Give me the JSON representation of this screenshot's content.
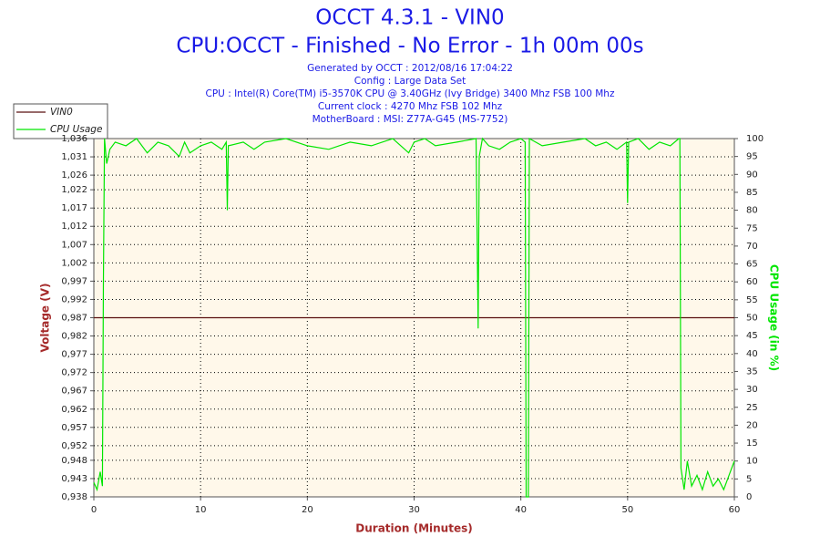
{
  "chart_data": {
    "type": "line",
    "title": "OCCT 4.3.1 - VIN0",
    "subtitle": "CPU:OCCT - Finished - No Error - 1h 00m 00s",
    "info": [
      "Generated by OCCT : 2012/08/16 17:04:22",
      "Config : Large Data Set",
      "CPU : Intel(R) Core(TM) i5-3570K CPU @ 3.40GHz (Ivy Bridge) 3400 Mhz FSB 100 Mhz",
      "Current clock : 4270 Mhz FSB 102 Mhz",
      "MotherBoard : MSI: Z77A-G45 (MS-7752)"
    ],
    "x_label": "Duration (Minutes)",
    "y_label": "Voltage (V)",
    "y2_label": "CPU Usage (in %)",
    "xlim": [
      0,
      60
    ],
    "xticks": [
      0,
      10,
      20,
      30,
      40,
      50,
      60
    ],
    "ylim": [
      0.938,
      1.036
    ],
    "yticks": [
      {
        "value": 0.938,
        "label": "0,938"
      },
      {
        "value": 0.943,
        "label": "0,943"
      },
      {
        "value": 0.948,
        "label": "0,948"
      },
      {
        "value": 0.952,
        "label": "0,952"
      },
      {
        "value": 0.957,
        "label": "0,957"
      },
      {
        "value": 0.962,
        "label": "0,962"
      },
      {
        "value": 0.967,
        "label": "0,967"
      },
      {
        "value": 0.972,
        "label": "0,972"
      },
      {
        "value": 0.977,
        "label": "0,977"
      },
      {
        "value": 0.982,
        "label": "0,982"
      },
      {
        "value": 0.987,
        "label": "0,987"
      },
      {
        "value": 0.992,
        "label": "0,992"
      },
      {
        "value": 0.997,
        "label": "0,997"
      },
      {
        "value": 1.002,
        "label": "1,002"
      },
      {
        "value": 1.007,
        "label": "1,007"
      },
      {
        "value": 1.012,
        "label": "1,012"
      },
      {
        "value": 1.017,
        "label": "1,017"
      },
      {
        "value": 1.022,
        "label": "1,022"
      },
      {
        "value": 1.026,
        "label": "1,026"
      },
      {
        "value": 1.031,
        "label": "1,031"
      },
      {
        "value": 1.036,
        "label": "1,036"
      }
    ],
    "y2lim": [
      0,
      100
    ],
    "y2ticks": [
      0,
      5,
      10,
      15,
      20,
      25,
      30,
      35,
      40,
      45,
      50,
      55,
      60,
      65,
      70,
      75,
      80,
      85,
      90,
      95,
      100
    ],
    "grid": true,
    "legend": "top-left",
    "series": [
      {
        "name": "VIN0",
        "color": "#5a1010",
        "x": [
          0,
          60
        ],
        "values": [
          0.987,
          0.987
        ]
      },
      {
        "name": "CPU Usage",
        "color": "#00e600",
        "axis": "y2",
        "x": [
          0,
          0.3,
          0.6,
          0.8,
          0.9,
          1.0,
          1.2,
          1.5,
          2,
          3,
          4,
          5,
          6,
          7,
          8,
          8.5,
          9,
          10,
          11,
          12,
          12.4,
          12.5,
          12.6,
          14,
          15,
          16,
          18,
          20,
          22,
          24,
          26,
          28,
          29.5,
          30,
          31,
          32,
          34,
          35.8,
          36,
          36.1,
          36.4,
          37,
          38,
          39,
          40,
          40.4,
          40.5,
          40.7,
          40.8,
          42,
          44,
          46,
          47,
          48,
          49,
          49.9,
          50,
          50.1,
          51,
          52,
          53,
          54,
          54.8,
          54.9,
          55,
          55.3,
          55.6,
          56,
          56.5,
          57,
          57.5,
          58,
          58.5,
          59,
          59.5,
          60
        ],
        "values": [
          4,
          2,
          7,
          3,
          60,
          100,
          93,
          97,
          99,
          98,
          100,
          96,
          99,
          98,
          95,
          99,
          96,
          98,
          99,
          97,
          99,
          80,
          98,
          99,
          97,
          99,
          100,
          98,
          97,
          99,
          98,
          100,
          96,
          99,
          100,
          98,
          99,
          100,
          47,
          95,
          100,
          98,
          97,
          99,
          100,
          99,
          0,
          0,
          100,
          98,
          99,
          100,
          98,
          99,
          97,
          99,
          82,
          99,
          100,
          97,
          99,
          98,
          100,
          100,
          8,
          2,
          10,
          3,
          6,
          2,
          7,
          3,
          5,
          2,
          6,
          10
        ]
      }
    ]
  }
}
